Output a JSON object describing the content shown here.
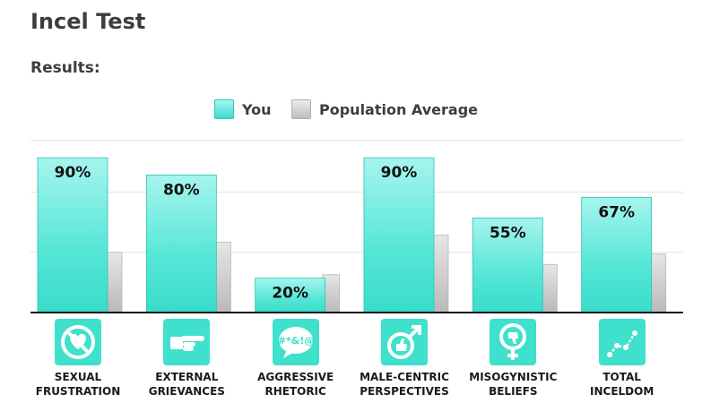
{
  "title": "Incel Test",
  "subtitle": "Results:",
  "colors": {
    "you": "#40e0d0",
    "average": "#cfcfcf",
    "icon_bg": "#3fe0cc"
  },
  "chart_data": {
    "type": "bar",
    "categories": [
      "SEXUAL\nFRUSTRATION",
      "EXTERNAL\nGRIEVANCES",
      "AGGRESSIVE\nRHETORIC",
      "MALE-CENTRIC\nPERSPECTIVES",
      "MISOGYNISTIC\nBELIEFS",
      "TOTAL\nINCELDOM"
    ],
    "icons": [
      "crossed-heart-icon",
      "pointing-hand-icon",
      "swear-speech-bubble-icon",
      "male-symbol-thumbs-up-icon",
      "female-symbol-thumbs-down-icon",
      "line-graph-icon"
    ],
    "series": [
      {
        "name": "You",
        "values": [
          90,
          80,
          20,
          90,
          55,
          67
        ],
        "labels": [
          "90%",
          "80%",
          "20%",
          "90%",
          "55%",
          "67%"
        ]
      },
      {
        "name": "Population Average",
        "values": [
          35,
          41,
          22,
          45,
          28,
          34
        ]
      }
    ],
    "ylim": [
      0,
      100
    ],
    "grid": true,
    "legend": "top-center"
  }
}
